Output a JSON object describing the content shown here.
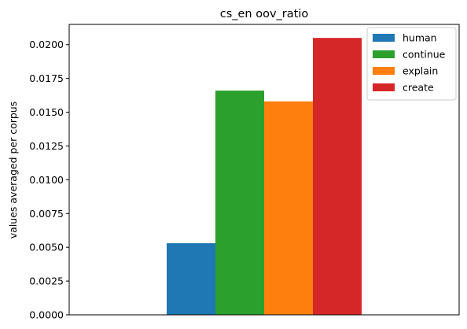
{
  "chart_data": {
    "type": "bar",
    "title": "cs_en oov_ratio",
    "xlabel": "",
    "ylabel": "values averaged per corpus",
    "ylim": [
      0,
      0.0215
    ],
    "yticks": [
      0.0,
      0.0025,
      0.005,
      0.0075,
      0.01,
      0.0125,
      0.015,
      0.0175,
      0.02
    ],
    "ytick_labels": [
      "0.0000",
      "0.0025",
      "0.0050",
      "0.0075",
      "0.0100",
      "0.0125",
      "0.0150",
      "0.0175",
      "0.0200"
    ],
    "grid": false,
    "legend_position": "top-right",
    "series": [
      {
        "name": "human",
        "value": 0.0053,
        "color": "#1f77b4"
      },
      {
        "name": "continue",
        "value": 0.0166,
        "color": "#2ca02c"
      },
      {
        "name": "explain",
        "value": 0.0158,
        "color": "#ff7f0e"
      },
      {
        "name": "create",
        "value": 0.0205,
        "color": "#d62728"
      }
    ]
  }
}
